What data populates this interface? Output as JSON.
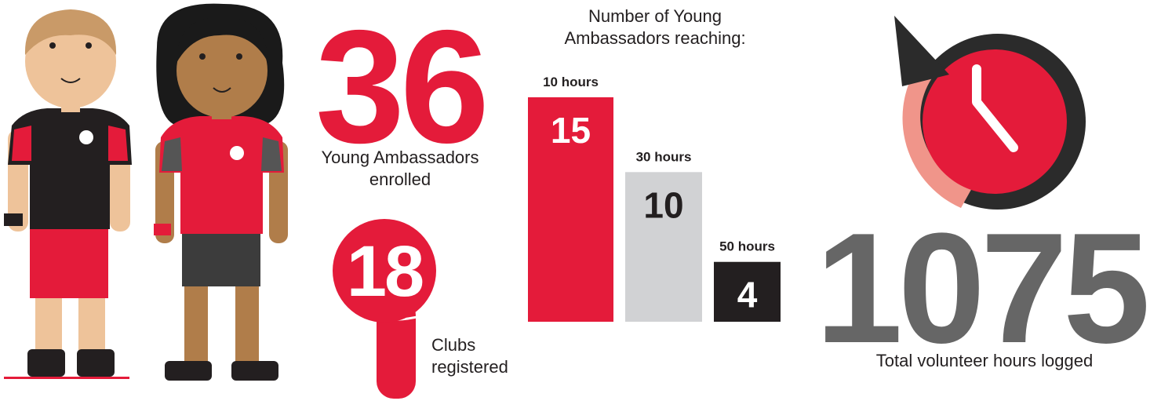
{
  "enrolled": {
    "value": 36,
    "label": "Young Ambassadors enrolled"
  },
  "clubs": {
    "value": 18,
    "label": "Clubs registered"
  },
  "chart": {
    "title": "Number of Young Ambassadors reaching:",
    "categories": [
      "10 hours",
      "30 hours",
      "50 hours"
    ],
    "values": [
      15,
      10,
      4
    ],
    "colors": [
      "#e41b3a",
      "#d1d2d4",
      "#231f20"
    ],
    "label_colors": [
      "#ffffff",
      "#231f20",
      "#ffffff"
    ]
  },
  "hours": {
    "value": 1075,
    "label": "Total volunteer hours logged"
  }
}
